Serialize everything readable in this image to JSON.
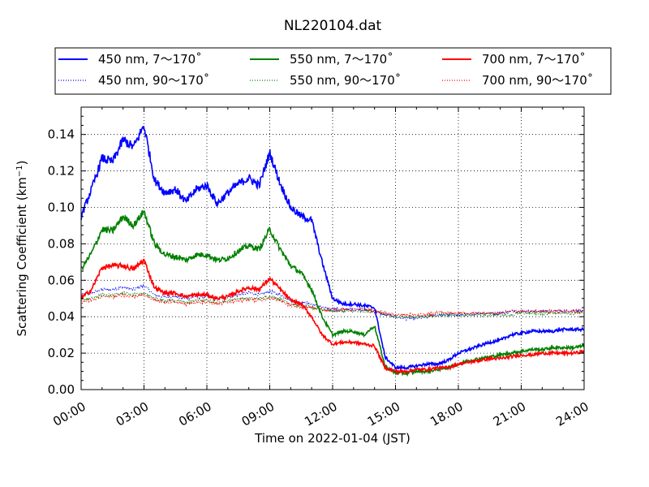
{
  "chart_data": {
    "type": "line",
    "title": "NL220104.dat",
    "xlabel": "Time on 2022-01-04 (JST)",
    "ylabel": "Scattering Coefficient (km",
    "ylabel_sup": "−1",
    "ylabel_close": ")",
    "xlim": [
      0,
      24
    ],
    "ylim": [
      0,
      0.155
    ],
    "grid": true,
    "grid_style": "dotted",
    "legend_position": "top, above plot, 3 columns",
    "x_ticks": [
      0,
      3,
      6,
      9,
      12,
      15,
      18,
      21,
      24
    ],
    "x_tick_labels": [
      "00:00",
      "03:00",
      "06:00",
      "09:00",
      "12:00",
      "15:00",
      "18:00",
      "21:00",
      "24:00"
    ],
    "y_ticks": [
      0.0,
      0.02,
      0.04,
      0.06,
      0.08,
      0.1,
      0.12,
      0.14
    ],
    "y_tick_labels": [
      "0.00",
      "0.02",
      "0.04",
      "0.06",
      "0.08",
      "0.10",
      "0.12",
      "0.14"
    ],
    "x": [
      0.0,
      0.5,
      1.0,
      1.5,
      2.0,
      2.5,
      3.0,
      3.5,
      4.0,
      4.5,
      5.0,
      5.5,
      6.0,
      6.5,
      7.0,
      7.5,
      8.0,
      8.5,
      9.0,
      9.5,
      10.0,
      10.5,
      11.0,
      11.5,
      12.0,
      12.5,
      13.0,
      13.5,
      14.0,
      14.5,
      15.0,
      15.5,
      16.0,
      16.5,
      17.0,
      17.5,
      18.0,
      18.5,
      19.0,
      19.5,
      20.0,
      20.5,
      21.0,
      21.5,
      22.0,
      22.5,
      23.0,
      23.5,
      24.0
    ],
    "series": [
      {
        "name": "450 nm, 7～170˚",
        "color": "#0000ff",
        "style": "solid",
        "values": [
          0.095,
          0.11,
          0.127,
          0.125,
          0.137,
          0.133,
          0.145,
          0.115,
          0.108,
          0.11,
          0.103,
          0.11,
          0.112,
          0.102,
          0.108,
          0.113,
          0.116,
          0.112,
          0.13,
          0.113,
          0.1,
          0.095,
          0.093,
          0.07,
          0.05,
          0.047,
          0.047,
          0.046,
          0.045,
          0.018,
          0.012,
          0.012,
          0.013,
          0.014,
          0.014,
          0.016,
          0.02,
          0.022,
          0.024,
          0.026,
          0.027,
          0.03,
          0.031,
          0.032,
          0.032,
          0.032,
          0.033,
          0.033,
          0.033
        ]
      },
      {
        "name": "550 nm, 7～170˚",
        "color": "#008000",
        "style": "solid",
        "values": [
          0.066,
          0.075,
          0.088,
          0.087,
          0.095,
          0.09,
          0.098,
          0.08,
          0.074,
          0.073,
          0.071,
          0.074,
          0.074,
          0.071,
          0.072,
          0.076,
          0.079,
          0.077,
          0.088,
          0.077,
          0.068,
          0.064,
          0.055,
          0.04,
          0.03,
          0.032,
          0.032,
          0.03,
          0.035,
          0.013,
          0.009,
          0.009,
          0.01,
          0.01,
          0.011,
          0.012,
          0.014,
          0.016,
          0.017,
          0.018,
          0.019,
          0.02,
          0.021,
          0.022,
          0.022,
          0.023,
          0.023,
          0.023,
          0.024
        ]
      },
      {
        "name": "700 nm, 7～170˚",
        "color": "#ff0000",
        "style": "solid",
        "values": [
          0.05,
          0.055,
          0.067,
          0.068,
          0.068,
          0.066,
          0.071,
          0.056,
          0.053,
          0.053,
          0.051,
          0.052,
          0.052,
          0.05,
          0.051,
          0.054,
          0.056,
          0.055,
          0.061,
          0.055,
          0.049,
          0.047,
          0.04,
          0.03,
          0.025,
          0.026,
          0.026,
          0.025,
          0.024,
          0.012,
          0.01,
          0.01,
          0.011,
          0.011,
          0.012,
          0.012,
          0.014,
          0.015,
          0.016,
          0.017,
          0.017,
          0.018,
          0.019,
          0.019,
          0.02,
          0.02,
          0.02,
          0.02,
          0.021
        ]
      },
      {
        "name": "450 nm, 90～170˚",
        "color": "#0000ff",
        "style": "dotted",
        "values": [
          0.052,
          0.053,
          0.055,
          0.055,
          0.056,
          0.055,
          0.057,
          0.052,
          0.051,
          0.051,
          0.05,
          0.051,
          0.051,
          0.05,
          0.051,
          0.052,
          0.053,
          0.052,
          0.054,
          0.052,
          0.049,
          0.048,
          0.047,
          0.045,
          0.044,
          0.044,
          0.044,
          0.044,
          0.043,
          0.041,
          0.04,
          0.039,
          0.039,
          0.04,
          0.041,
          0.041,
          0.041,
          0.041,
          0.042,
          0.042,
          0.042,
          0.043,
          0.043,
          0.043,
          0.043,
          0.043,
          0.043,
          0.043,
          0.043
        ]
      },
      {
        "name": "550 nm, 90～170˚",
        "color": "#008000",
        "style": "dotted",
        "values": [
          0.049,
          0.05,
          0.052,
          0.052,
          0.053,
          0.052,
          0.053,
          0.05,
          0.049,
          0.049,
          0.048,
          0.049,
          0.049,
          0.048,
          0.049,
          0.05,
          0.05,
          0.05,
          0.051,
          0.05,
          0.047,
          0.046,
          0.045,
          0.044,
          0.043,
          0.043,
          0.043,
          0.043,
          0.043,
          0.041,
          0.04,
          0.04,
          0.04,
          0.04,
          0.041,
          0.041,
          0.041,
          0.041,
          0.041,
          0.041,
          0.041,
          0.041,
          0.042,
          0.042,
          0.042,
          0.042,
          0.042,
          0.042,
          0.042
        ]
      },
      {
        "name": "700 nm, 90～170˚",
        "color": "#ff0000",
        "style": "dotted",
        "values": [
          0.048,
          0.049,
          0.051,
          0.051,
          0.052,
          0.051,
          0.052,
          0.049,
          0.048,
          0.048,
          0.047,
          0.048,
          0.048,
          0.047,
          0.048,
          0.049,
          0.049,
          0.049,
          0.05,
          0.049,
          0.046,
          0.045,
          0.045,
          0.044,
          0.044,
          0.044,
          0.044,
          0.044,
          0.043,
          0.042,
          0.041,
          0.041,
          0.041,
          0.041,
          0.042,
          0.042,
          0.042,
          0.042,
          0.042,
          0.042,
          0.042,
          0.043,
          0.043,
          0.043,
          0.043,
          0.043,
          0.043,
          0.043,
          0.043
        ]
      }
    ],
    "legend_order": [
      0,
      1,
      2,
      3,
      4,
      5
    ]
  }
}
